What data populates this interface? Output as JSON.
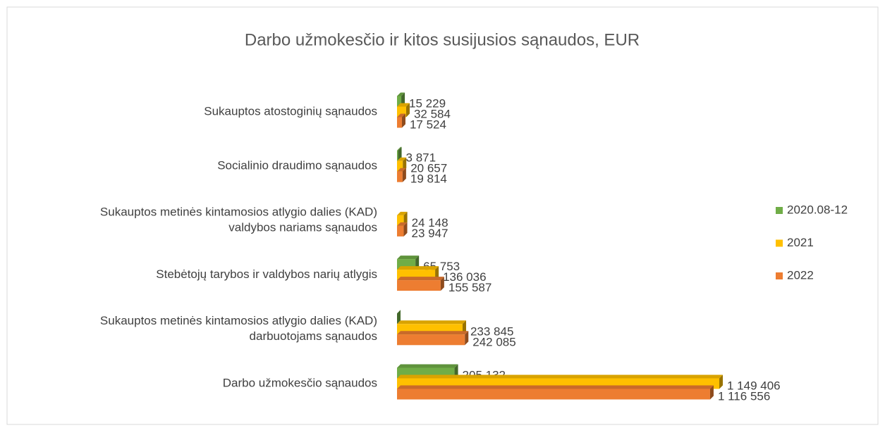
{
  "chart_data": {
    "type": "bar3d_horizontal",
    "title": "Darbo užmokesčio ir kitos susijusios sąnaudos, EUR",
    "categories": [
      "Sukauptos atostoginių sąnaudos",
      "Socialinio draudimo sąnaudos",
      "Sukauptos metinės kintamosios atlygio dalies (KAD)\nvaldybos nariams sąnaudos",
      "Stebėtojų tarybos ir valdybos narių atlygis",
      "Sukauptos metinės kintamosios atlygio dalies (KAD)\ndarbuotojams sąnaudos",
      "Darbo užmokesčio sąnaudos"
    ],
    "series": [
      {
        "name": "2020.08-12",
        "color": "#70ad47",
        "values": [
          15229,
          3871,
          null,
          65753,
          0,
          205132
        ],
        "value_labels": [
          "15 229",
          "3 871",
          null,
          "65 753",
          "-",
          "205 132"
        ]
      },
      {
        "name": "2021",
        "color": "#ffc000",
        "values": [
          32584,
          20657,
          24148,
          136036,
          233845,
          1149406
        ],
        "value_labels": [
          "32 584",
          "20 657",
          "24 148",
          "136 036",
          "233 845",
          "1 149 406"
        ]
      },
      {
        "name": "2022",
        "color": "#ed7d31",
        "values": [
          17524,
          19814,
          23947,
          155587,
          242085,
          1116556
        ],
        "value_labels": [
          "17 524",
          "19 814",
          "23 947",
          "155 587",
          "242 085",
          "1 116 556"
        ]
      }
    ],
    "legend": "right"
  }
}
